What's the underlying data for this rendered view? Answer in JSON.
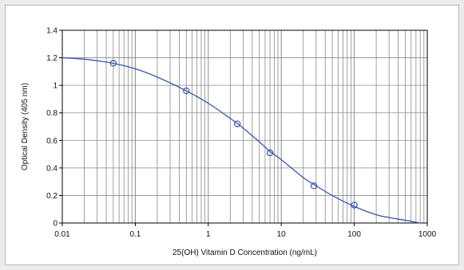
{
  "chart_data": {
    "type": "scatter",
    "title": "",
    "xlabel": "25(OH) Vitamin D Concentration (ng/mL)",
    "ylabel": "Optical Density (405 nm)",
    "x_scale": "log",
    "xlim": [
      0.01,
      1000
    ],
    "ylim": [
      0,
      1.4
    ],
    "x_ticks": [
      0.01,
      0.1,
      1,
      10,
      100,
      1000
    ],
    "x_tick_labels": [
      "0.01",
      "0.1",
      "1",
      "10",
      "100",
      "1000"
    ],
    "y_ticks": [
      0,
      0.2,
      0.4,
      0.6,
      0.8,
      1,
      1.2,
      1.4
    ],
    "y_tick_labels": [
      "0",
      "0.2",
      "0.4",
      "0.6",
      "0.8",
      "1",
      "1.2",
      "1.4"
    ],
    "grid": true,
    "series": [
      {
        "kind": "points",
        "marker": "open-circle",
        "x": [
          0.05,
          0.5,
          2.5,
          7,
          28,
          100
        ],
        "y": [
          1.16,
          0.96,
          0.72,
          0.51,
          0.27,
          0.13
        ]
      },
      {
        "kind": "fitted-curve",
        "x": [
          0.01,
          0.02,
          0.05,
          0.1,
          0.2,
          0.5,
          1,
          2,
          3,
          5,
          7,
          10,
          20,
          30,
          50,
          100,
          200,
          300,
          500,
          800
        ],
        "y": [
          1.2,
          1.19,
          1.16,
          1.12,
          1.06,
          0.96,
          0.87,
          0.76,
          0.69,
          0.59,
          0.52,
          0.46,
          0.33,
          0.27,
          0.2,
          0.12,
          0.06,
          0.04,
          0.02,
          0.0
        ]
      }
    ],
    "colors": {
      "series": "#3c55aa",
      "grid": "#8a8a8a",
      "axis": "#000000"
    }
  }
}
